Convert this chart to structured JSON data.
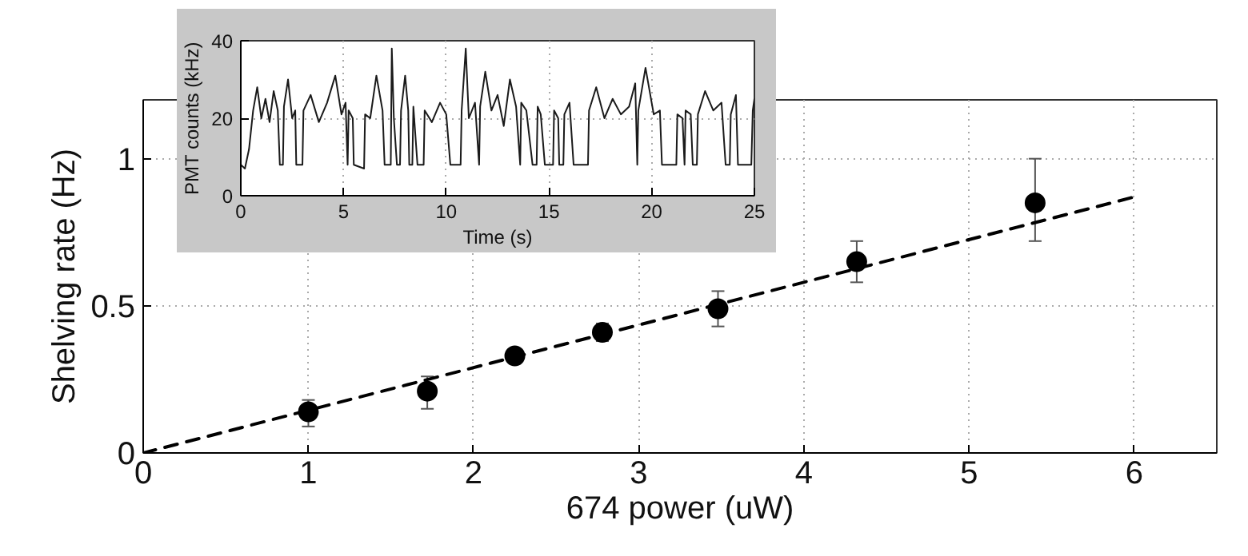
{
  "chart_data": [
    {
      "type": "scatter",
      "xlabel": "674 power (uW)",
      "ylabel": "Shelving rate (Hz)",
      "xlim": [
        0,
        6.5
      ],
      "ylim": [
        0,
        1.2
      ],
      "xticks": [
        0,
        1,
        2,
        3,
        4,
        5,
        6
      ],
      "yticks": [
        0,
        0.5,
        1
      ],
      "grid": true,
      "marker": "circle",
      "series": [
        {
          "type": "scatter",
          "color": "#000000",
          "x": [
            1,
            1.72,
            2.25,
            2.78,
            3.48,
            4.32,
            5.4
          ],
          "values": [
            0.14,
            0.21,
            0.33,
            0.41,
            0.49,
            0.65,
            0.85
          ],
          "errors": [
            [
              0.09,
              0.18
            ],
            [
              0.15,
              0.26
            ],
            [
              0.31,
              0.35
            ],
            [
              0.38,
              0.44
            ],
            [
              0.43,
              0.55
            ],
            [
              0.58,
              0.72
            ],
            [
              0.72,
              1.0
            ]
          ]
        },
        {
          "type": "line",
          "color": "#000000",
          "line_style": "dashed",
          "marker": "none",
          "x": [
            0,
            6
          ],
          "values": [
            0,
            0.87
          ]
        }
      ]
    },
    {
      "type": "line",
      "xlabel": "Time (s)",
      "ylabel": "PMT counts (kHz)",
      "xlim": [
        0,
        25
      ],
      "ylim": [
        0,
        40
      ],
      "xticks": [
        0,
        5,
        10,
        15,
        20,
        25
      ],
      "yticks": [
        0,
        20,
        40
      ],
      "grid": true,
      "marker": "none",
      "line_style": "solid",
      "series": [
        {
          "color": "#1a1a1a",
          "x": [
            0,
            0.2,
            0.4,
            0.6,
            0.8,
            1.0,
            1.2,
            1.4,
            1.6,
            1.8,
            1.9,
            2.05,
            2.1,
            2.3,
            2.5,
            2.65,
            2.7,
            3.0,
            3.05,
            3.4,
            3.8,
            4.2,
            4.6,
            4.9,
            5.1,
            5.2,
            5.25,
            5.45,
            5.5,
            6.0,
            6.05,
            6.3,
            6.6,
            6.9,
            7.0,
            7.3,
            7.35,
            7.45,
            7.6,
            7.75,
            7.8,
            8.0,
            8.15,
            8.2,
            8.35,
            8.4,
            8.6,
            8.9,
            8.95,
            9.3,
            9.7,
            10.0,
            10.2,
            10.7,
            10.75,
            10.95,
            11.1,
            11.4,
            11.6,
            11.65,
            11.9,
            12.2,
            12.5,
            12.8,
            13.1,
            13.4,
            13.6,
            13.65,
            13.9,
            14.2,
            14.4,
            14.45,
            14.6,
            14.8,
            15.2,
            15.25,
            15.45,
            15.5,
            15.7,
            15.75,
            16.0,
            16.2,
            16.9,
            16.95,
            17.3,
            17.7,
            18.1,
            18.5,
            18.9,
            19.2,
            19.3,
            19.35,
            19.7,
            20.1,
            20.4,
            20.5,
            21.2,
            21.25,
            21.5,
            21.6,
            21.65,
            21.9,
            22.0,
            22.2,
            22.25,
            22.6,
            23.0,
            23.4,
            23.6,
            23.8,
            23.85,
            24.1,
            24.2,
            24.85,
            24.92,
            25
          ],
          "values": [
            8,
            7,
            12,
            22,
            28,
            20,
            25,
            19,
            27,
            22,
            8,
            8,
            23,
            30,
            20,
            22,
            8,
            8,
            22,
            26,
            19,
            24,
            31,
            21,
            24,
            8,
            22,
            20,
            8,
            7,
            21,
            20,
            31,
            22,
            8,
            8,
            38,
            20,
            8,
            8,
            22,
            31,
            22,
            8,
            8,
            23,
            8,
            8,
            22,
            19,
            24,
            21,
            8,
            8,
            22,
            38,
            20,
            24,
            8,
            23,
            32,
            22,
            26,
            18,
            30,
            23,
            8,
            24,
            22,
            8,
            8,
            23,
            21,
            8,
            8,
            22,
            20,
            8,
            8,
            21,
            24,
            8,
            8,
            22,
            28,
            20,
            25,
            21,
            23,
            29,
            8,
            22,
            33,
            21,
            22,
            8,
            8,
            21,
            20,
            8,
            22,
            21,
            8,
            8,
            21,
            27,
            22,
            24,
            8,
            8,
            21,
            26,
            8,
            8,
            22,
            25
          ]
        }
      ]
    }
  ]
}
